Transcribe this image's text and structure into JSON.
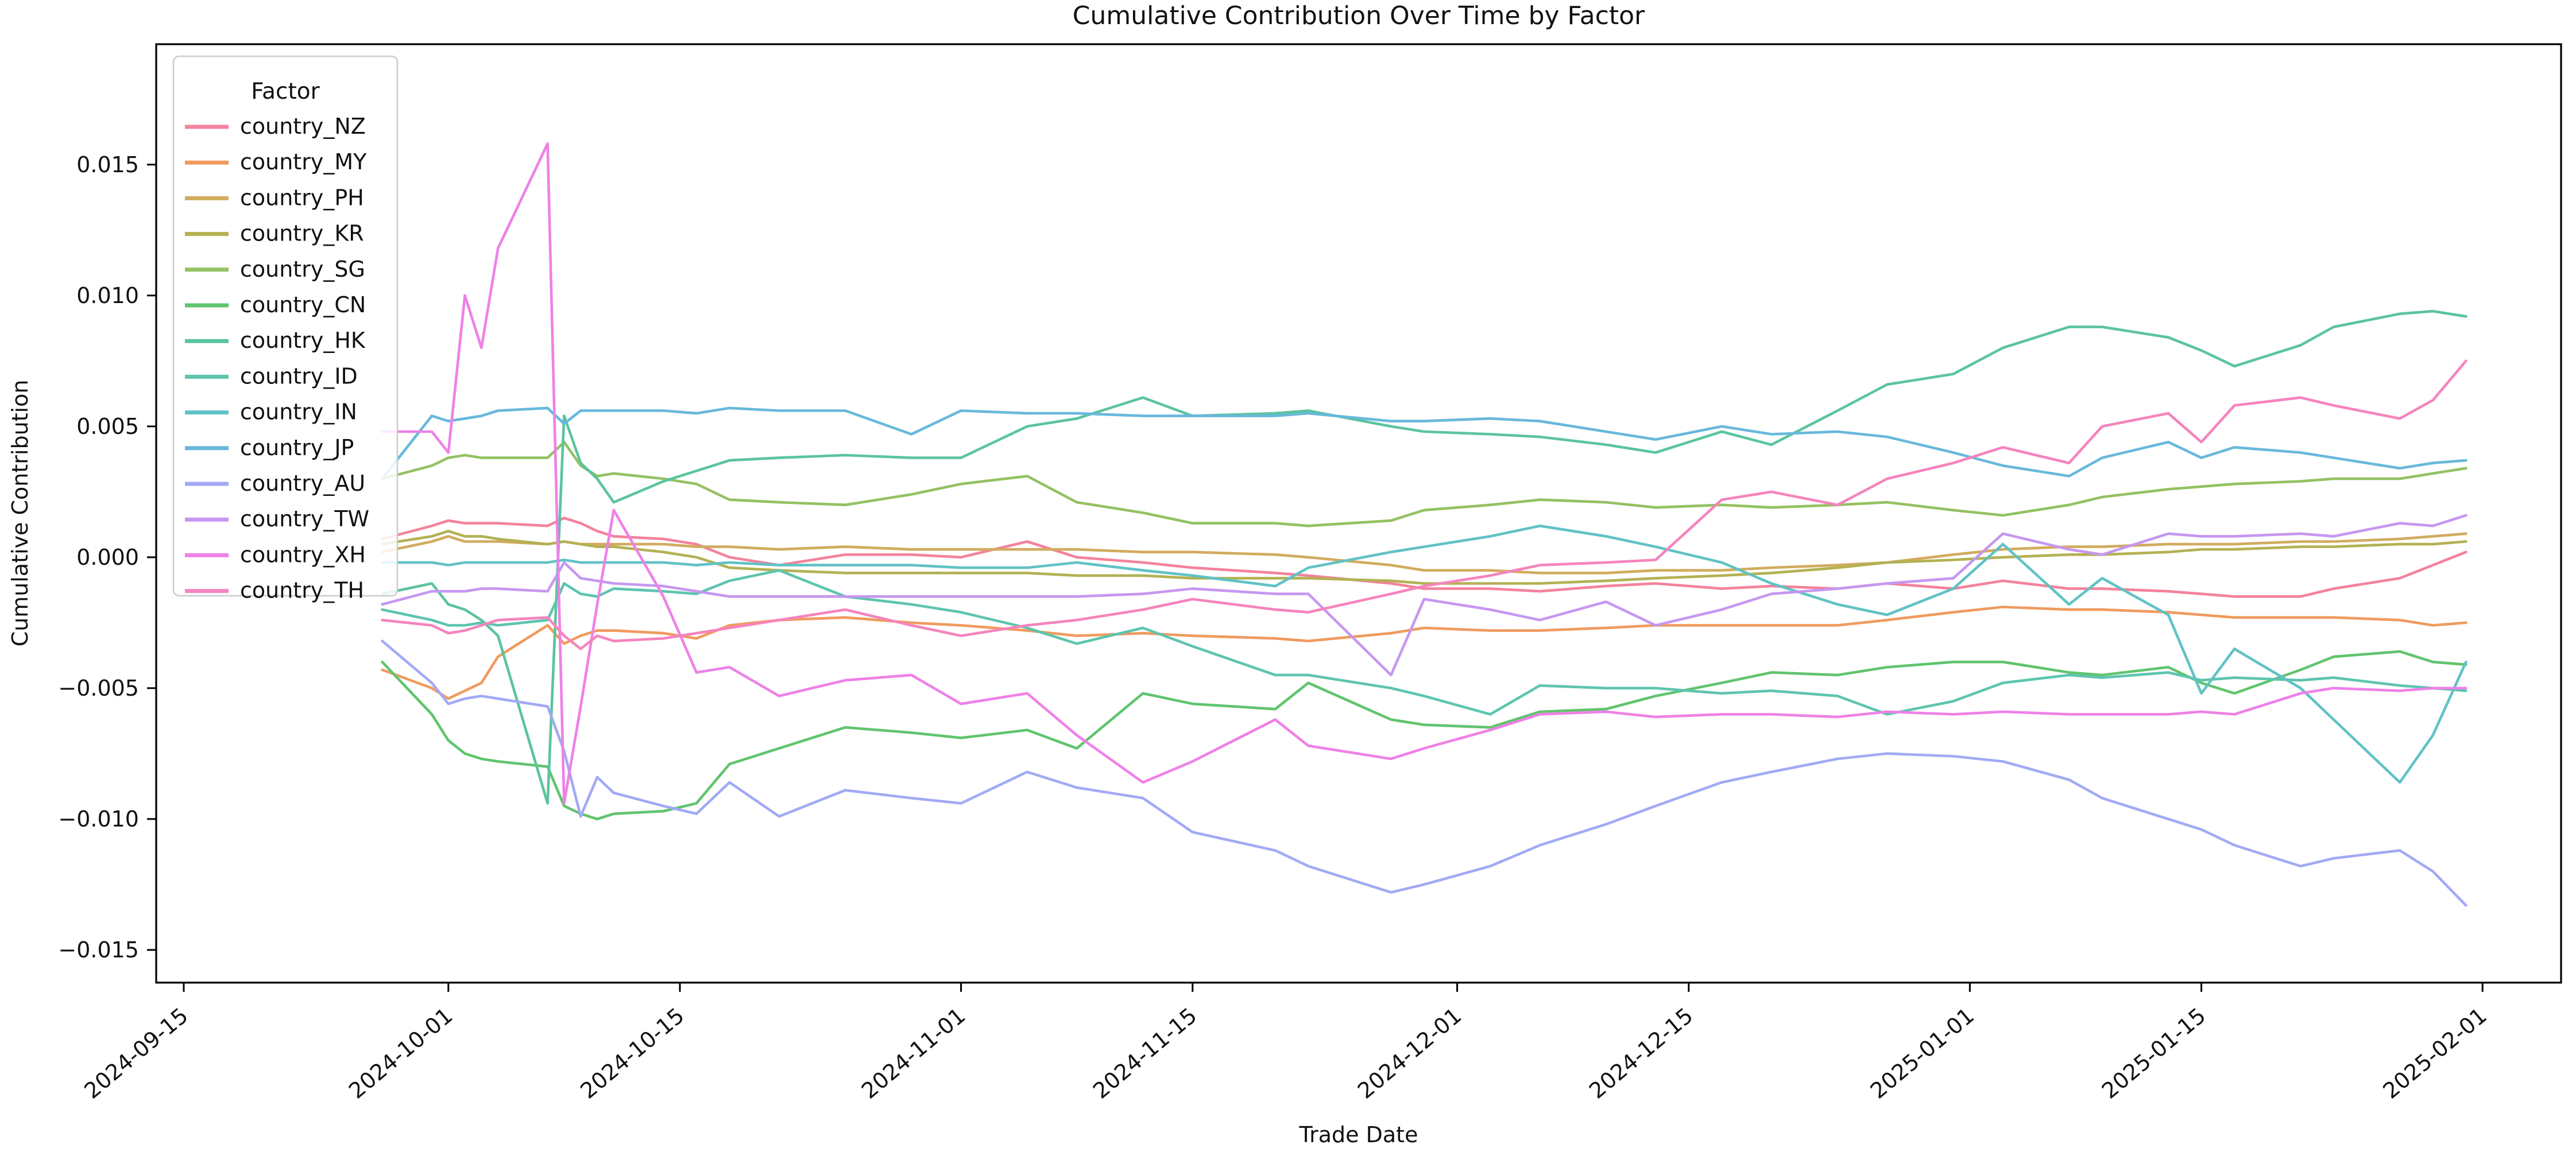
{
  "figure": {
    "title": "Cumulative Contribution Over Time by Factor",
    "xlabel": "Trade Date",
    "ylabel": "Cumulative Contribution",
    "background": "#ffffff"
  },
  "legend": {
    "title": "Factor"
  },
  "chart_data": {
    "type": "line",
    "title": "Cumulative Contribution Over Time by Factor",
    "xlabel": "Trade Date",
    "ylabel": "Cumulative Contribution",
    "grid": false,
    "legend_position": "upper left",
    "legend_title": "Factor",
    "ylim": [
      -0.01625,
      0.0196
    ],
    "xlim": [
      "2024-09-13T08:00:00",
      "2025-02-05T18:00:00"
    ],
    "yticks": [
      0.015,
      0.01,
      0.005,
      0.0,
      -0.005,
      -0.01,
      -0.015
    ],
    "ytick_labels": [
      "0.015",
      "0.010",
      "0.005",
      "0.000",
      "−0.005",
      "−0.010",
      "−0.015"
    ],
    "xticks": [
      "2024-09-15",
      "2024-10-01",
      "2024-10-15",
      "2024-11-01",
      "2024-11-15",
      "2024-12-01",
      "2024-12-15",
      "2025-01-01",
      "2025-01-15",
      "2025-02-01"
    ],
    "x": [
      "2024-09-27",
      "2024-09-30",
      "2024-10-01",
      "2024-10-02",
      "2024-10-03",
      "2024-10-04",
      "2024-10-07",
      "2024-10-08",
      "2024-10-09",
      "2024-10-10",
      "2024-10-11",
      "2024-10-14",
      "2024-10-16",
      "2024-10-18",
      "2024-10-21",
      "2024-10-25",
      "2024-10-29",
      "2024-11-01",
      "2024-11-05",
      "2024-11-08",
      "2024-11-12",
      "2024-11-15",
      "2024-11-20",
      "2024-11-22",
      "2024-11-27",
      "2024-11-29",
      "2024-12-03",
      "2024-12-06",
      "2024-12-10",
      "2024-12-13",
      "2024-12-17",
      "2024-12-20",
      "2024-12-24",
      "2024-12-27",
      "2024-12-31",
      "2025-01-03",
      "2025-01-07",
      "2025-01-09",
      "2025-01-13",
      "2025-01-15",
      "2025-01-17",
      "2025-01-21",
      "2025-01-23",
      "2025-01-27",
      "2025-01-29",
      "2025-01-31"
    ],
    "series": [
      {
        "name": "country_NZ",
        "color": "#f4829b",
        "values": [
          0.0007,
          0.0012,
          0.0014,
          0.0013,
          0.0013,
          0.0013,
          0.0012,
          0.0015,
          0.0013,
          0.001,
          0.0008,
          0.0007,
          0.0005,
          0.0,
          -0.0003,
          0.0001,
          0.0001,
          0.0,
          0.0006,
          0.0,
          -0.0002,
          -0.0004,
          -0.0006,
          -0.0007,
          -0.001,
          -0.0012,
          -0.0012,
          -0.0013,
          -0.0011,
          -0.001,
          -0.0012,
          -0.0011,
          -0.0012,
          -0.001,
          -0.0012,
          -0.0009,
          -0.0012,
          -0.0012,
          -0.0013,
          -0.0014,
          -0.0015,
          -0.0015,
          -0.0012,
          -0.0008,
          -0.0003,
          0.0002
        ]
      },
      {
        "name": "country_MY",
        "color": "#ef9b5f",
        "values": [
          -0.0043,
          -0.005,
          -0.0054,
          -0.0051,
          -0.0048,
          -0.0038,
          -0.0026,
          -0.0033,
          -0.003,
          -0.0028,
          -0.0028,
          -0.0029,
          -0.0031,
          -0.0026,
          -0.0024,
          -0.0023,
          -0.0025,
          -0.0026,
          -0.0028,
          -0.003,
          -0.0029,
          -0.003,
          -0.0031,
          -0.0032,
          -0.0029,
          -0.0027,
          -0.0028,
          -0.0028,
          -0.0027,
          -0.0026,
          -0.0026,
          -0.0026,
          -0.0026,
          -0.0024,
          -0.0021,
          -0.0019,
          -0.002,
          -0.002,
          -0.0021,
          -0.0022,
          -0.0023,
          -0.0023,
          -0.0023,
          -0.0024,
          -0.0026,
          -0.0025
        ]
      },
      {
        "name": "country_PH",
        "color": "#d2ab5e",
        "values": [
          0.0002,
          0.0006,
          0.0008,
          0.0006,
          0.0006,
          0.0006,
          0.0005,
          0.0006,
          0.0005,
          0.0005,
          0.0005,
          0.0005,
          0.0004,
          0.0004,
          0.0003,
          0.0004,
          0.0003,
          0.0003,
          0.0003,
          0.0003,
          0.0002,
          0.0002,
          0.0001,
          0.0,
          -0.0003,
          -0.0005,
          -0.0005,
          -0.0006,
          -0.0006,
          -0.0005,
          -0.0005,
          -0.0004,
          -0.0003,
          -0.0002,
          0.0001,
          0.0003,
          0.0004,
          0.0004,
          0.0005,
          0.0005,
          0.0005,
          0.0006,
          0.0006,
          0.0007,
          0.0008,
          0.0009
        ]
      },
      {
        "name": "country_KR",
        "color": "#b3b153",
        "values": [
          0.0005,
          0.0008,
          0.001,
          0.0008,
          0.0008,
          0.0007,
          0.0005,
          0.0006,
          0.0005,
          0.0004,
          0.0004,
          0.0002,
          0.0,
          -0.0004,
          -0.0005,
          -0.0006,
          -0.0006,
          -0.0006,
          -0.0006,
          -0.0007,
          -0.0007,
          -0.0008,
          -0.0008,
          -0.0008,
          -0.0009,
          -0.001,
          -0.001,
          -0.001,
          -0.0009,
          -0.0008,
          -0.0007,
          -0.0006,
          -0.0004,
          -0.0002,
          -0.0001,
          0.0,
          0.0001,
          0.0001,
          0.0002,
          0.0003,
          0.0003,
          0.0004,
          0.0004,
          0.0005,
          0.0005,
          0.0006
        ]
      },
      {
        "name": "country_SG",
        "color": "#94c163",
        "values": [
          0.003,
          0.0035,
          0.0038,
          0.0039,
          0.0038,
          0.0038,
          0.0038,
          0.0044,
          0.0035,
          0.0031,
          0.0032,
          0.003,
          0.0028,
          0.0022,
          0.0021,
          0.002,
          0.0024,
          0.0028,
          0.0031,
          0.0021,
          0.0017,
          0.0013,
          0.0013,
          0.0012,
          0.0014,
          0.0018,
          0.002,
          0.0022,
          0.0021,
          0.0019,
          0.002,
          0.0019,
          0.002,
          0.0021,
          0.0018,
          0.0016,
          0.002,
          0.0023,
          0.0026,
          0.0027,
          0.0028,
          0.0029,
          0.003,
          0.003,
          0.0032,
          0.0034
        ]
      },
      {
        "name": "country_CN",
        "color": "#60c46e",
        "values": [
          -0.004,
          -0.006,
          -0.007,
          -0.0075,
          -0.0077,
          -0.0078,
          -0.008,
          -0.0095,
          -0.0098,
          -0.01,
          -0.0098,
          -0.0097,
          -0.0094,
          -0.0079,
          -0.0073,
          -0.0065,
          -0.0067,
          -0.0069,
          -0.0066,
          -0.0073,
          -0.0052,
          -0.0056,
          -0.0058,
          -0.0048,
          -0.0062,
          -0.0064,
          -0.0065,
          -0.0059,
          -0.0058,
          -0.0053,
          -0.0048,
          -0.0044,
          -0.0045,
          -0.0042,
          -0.004,
          -0.004,
          -0.0044,
          -0.0045,
          -0.0042,
          -0.0048,
          -0.0052,
          -0.0043,
          -0.0038,
          -0.0036,
          -0.004,
          -0.0041
        ]
      },
      {
        "name": "country_HK",
        "color": "#5bc49d",
        "values": [
          -0.0014,
          -0.001,
          -0.0018,
          -0.002,
          -0.0024,
          -0.003,
          -0.0094,
          0.0054,
          0.0036,
          0.003,
          0.0021,
          0.0029,
          0.0033,
          0.0037,
          0.0038,
          0.0039,
          0.0038,
          0.0038,
          0.005,
          0.0053,
          0.0061,
          0.0054,
          0.0055,
          0.0056,
          0.005,
          0.0048,
          0.0047,
          0.0046,
          0.0043,
          0.004,
          0.0048,
          0.0043,
          0.0056,
          0.0066,
          0.007,
          0.008,
          0.0088,
          0.0088,
          0.0084,
          0.0079,
          0.0073,
          0.0081,
          0.0088,
          0.0093,
          0.0094,
          0.0092
        ]
      },
      {
        "name": "country_ID",
        "color": "#5ec4af",
        "values": [
          -0.002,
          -0.0024,
          -0.0026,
          -0.0026,
          -0.0025,
          -0.0026,
          -0.0024,
          -0.001,
          -0.0014,
          -0.0015,
          -0.0012,
          -0.0013,
          -0.0014,
          -0.0009,
          -0.0005,
          -0.0015,
          -0.0018,
          -0.0021,
          -0.0027,
          -0.0033,
          -0.0027,
          -0.0034,
          -0.0045,
          -0.0045,
          -0.005,
          -0.0053,
          -0.006,
          -0.0049,
          -0.005,
          -0.005,
          -0.0052,
          -0.0051,
          -0.0053,
          -0.006,
          -0.0055,
          -0.0048,
          -0.0045,
          -0.0046,
          -0.0044,
          -0.0047,
          -0.0046,
          -0.0047,
          -0.0046,
          -0.0049,
          -0.005,
          -0.0051
        ]
      },
      {
        "name": "country_IN",
        "color": "#60c2c5",
        "values": [
          -0.0002,
          -0.0002,
          -0.0003,
          -0.0002,
          -0.0002,
          -0.0002,
          -0.0002,
          -0.0001,
          -0.0002,
          -0.0002,
          -0.0002,
          -0.0002,
          -0.0003,
          -0.0002,
          -0.0003,
          -0.0003,
          -0.0003,
          -0.0004,
          -0.0004,
          -0.0002,
          -0.0005,
          -0.0007,
          -0.0011,
          -0.0004,
          0.0002,
          0.0004,
          0.0008,
          0.0012,
          0.0008,
          0.0004,
          -0.0002,
          -0.001,
          -0.0018,
          -0.0022,
          -0.0012,
          0.0005,
          -0.0018,
          -0.0008,
          -0.0022,
          -0.0052,
          -0.0035,
          -0.005,
          -0.0062,
          -0.0086,
          -0.0068,
          -0.004
        ]
      },
      {
        "name": "country_JP",
        "color": "#68b8dc",
        "values": [
          0.003,
          0.0054,
          0.0052,
          0.0053,
          0.0054,
          0.0056,
          0.0057,
          0.0051,
          0.0056,
          0.0056,
          0.0056,
          0.0056,
          0.0055,
          0.0057,
          0.0056,
          0.0056,
          0.0047,
          0.0056,
          0.0055,
          0.0055,
          0.0054,
          0.0054,
          0.0054,
          0.0055,
          0.0052,
          0.0052,
          0.0053,
          0.0052,
          0.0048,
          0.0045,
          0.005,
          0.0047,
          0.0048,
          0.0046,
          0.004,
          0.0035,
          0.0031,
          0.0038,
          0.0044,
          0.0038,
          0.0042,
          0.004,
          0.0038,
          0.0034,
          0.0036,
          0.0037
        ]
      },
      {
        "name": "country_AU",
        "color": "#a2aaf4",
        "values": [
          -0.0032,
          -0.0048,
          -0.0056,
          -0.0054,
          -0.0053,
          -0.0054,
          -0.0057,
          -0.0074,
          -0.0099,
          -0.0084,
          -0.009,
          -0.0095,
          -0.0098,
          -0.0086,
          -0.0099,
          -0.0089,
          -0.0092,
          -0.0094,
          -0.0082,
          -0.0088,
          -0.0092,
          -0.0105,
          -0.0112,
          -0.0118,
          -0.0128,
          -0.0125,
          -0.0118,
          -0.011,
          -0.0102,
          -0.0095,
          -0.0086,
          -0.0082,
          -0.0077,
          -0.0075,
          -0.0076,
          -0.0078,
          -0.0085,
          -0.0092,
          -0.01,
          -0.0104,
          -0.011,
          -0.0118,
          -0.0115,
          -0.0112,
          -0.012,
          -0.0133
        ]
      },
      {
        "name": "country_TW",
        "color": "#c697f0",
        "values": [
          -0.0018,
          -0.0013,
          -0.0013,
          -0.0013,
          -0.0012,
          -0.0012,
          -0.0013,
          -0.0002,
          -0.0008,
          -0.0009,
          -0.001,
          -0.0011,
          -0.0013,
          -0.0015,
          -0.0015,
          -0.0015,
          -0.0015,
          -0.0015,
          -0.0015,
          -0.0015,
          -0.0014,
          -0.0012,
          -0.0014,
          -0.0014,
          -0.0045,
          -0.0016,
          -0.002,
          -0.0024,
          -0.0017,
          -0.0026,
          -0.002,
          -0.0014,
          -0.0012,
          -0.001,
          -0.0008,
          0.0009,
          0.0003,
          0.0001,
          0.0009,
          0.0008,
          0.0008,
          0.0009,
          0.0008,
          0.0013,
          0.0012,
          0.0016
        ]
      },
      {
        "name": "country_XH",
        "color": "#ee81e7",
        "values": [
          0.0048,
          0.0048,
          0.004,
          0.01,
          0.008,
          0.0118,
          0.0158,
          -0.0094,
          -0.0057,
          -0.0018,
          0.0018,
          -0.0015,
          -0.0044,
          -0.0042,
          -0.0053,
          -0.0047,
          -0.0045,
          -0.0056,
          -0.0052,
          -0.0068,
          -0.0086,
          -0.0078,
          -0.0062,
          -0.0072,
          -0.0077,
          -0.0073,
          -0.0066,
          -0.006,
          -0.0059,
          -0.0061,
          -0.006,
          -0.006,
          -0.0061,
          -0.0059,
          -0.006,
          -0.0059,
          -0.006,
          -0.006,
          -0.006,
          -0.0059,
          -0.006,
          -0.0052,
          -0.005,
          -0.0051,
          -0.005,
          -0.005
        ]
      },
      {
        "name": "country_TH",
        "color": "#f584bd",
        "values": [
          -0.0024,
          -0.0026,
          -0.0029,
          -0.0028,
          -0.0026,
          -0.0024,
          -0.0023,
          -0.003,
          -0.0035,
          -0.003,
          -0.0032,
          -0.0031,
          -0.0029,
          -0.0027,
          -0.0024,
          -0.002,
          -0.0026,
          -0.003,
          -0.0026,
          -0.0024,
          -0.002,
          -0.0016,
          -0.002,
          -0.0021,
          -0.0014,
          -0.0011,
          -0.0007,
          -0.0003,
          -0.0002,
          -0.0001,
          0.0022,
          0.0025,
          0.002,
          0.003,
          0.0036,
          0.0042,
          0.0036,
          0.005,
          0.0055,
          0.0044,
          0.0058,
          0.0061,
          0.0058,
          0.0053,
          0.006,
          0.0075
        ]
      }
    ]
  }
}
